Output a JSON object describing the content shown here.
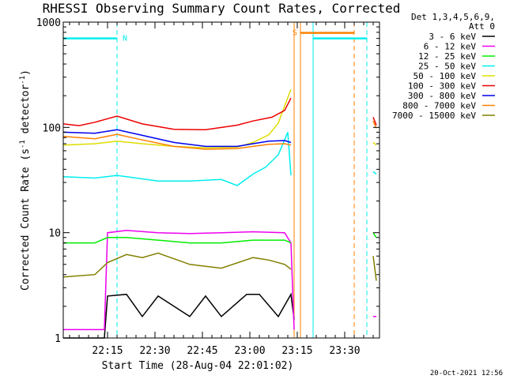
{
  "chart_data": {
    "type": "line",
    "title": "RHESSI Observing Summary Count Rates, Corrected",
    "xlabel": "Start Time (28-Aug-04 22:01:02)",
    "ylabel": "Corrected Count Rate (s",
    "ylabel_sup": "-1",
    "ylabel_tail": " detector",
    "ylabel_close": ")",
    "y_scale": "log",
    "ylim": [
      1,
      1000
    ],
    "xlim_minutes": [
      0,
      100
    ],
    "x_ticks": [
      {
        "minute": 14,
        "label": "22:15"
      },
      {
        "minute": 29,
        "label": "22:30"
      },
      {
        "minute": 44,
        "label": "22:45"
      },
      {
        "minute": 59,
        "label": "23:00"
      },
      {
        "minute": 74,
        "label": "23:15"
      },
      {
        "minute": 89,
        "label": "23:30"
      }
    ],
    "y_ticks": [
      {
        "value": 1,
        "label": "1"
      },
      {
        "value": 10,
        "label": "10"
      },
      {
        "value": 100,
        "label": "100"
      },
      {
        "value": 1000,
        "label": "1000"
      }
    ],
    "legend_header": [
      "Det 1,3,4,5,6,9,",
      "Att 0"
    ],
    "legend_position": "right",
    "series": [
      {
        "name": "3 - 6 keV",
        "color": "#000000",
        "x": [
          0,
          13,
          14,
          20,
          25,
          30,
          40,
          45,
          50,
          58,
          62,
          68,
          72,
          73
        ],
        "values": [
          1.0,
          1.0,
          2.5,
          2.6,
          1.6,
          2.5,
          1.6,
          2.5,
          1.6,
          2.6,
          2.6,
          1.6,
          2.6,
          1.5
        ]
      },
      {
        "name": "6 - 12 keV",
        "color": "#ee00ee",
        "x": [
          0,
          13,
          14,
          20,
          30,
          40,
          50,
          60,
          70,
          72,
          73
        ],
        "values": [
          1.2,
          1.2,
          10,
          10.5,
          10,
          9.8,
          10,
          10.2,
          10,
          8,
          1.2
        ]
      },
      {
        "name": "12 - 25 keV",
        "color": "#00ee00",
        "x": [
          0,
          10,
          14,
          20,
          30,
          40,
          50,
          60,
          70,
          72
        ],
        "values": [
          8,
          8,
          9,
          9,
          8.5,
          8,
          8,
          8.5,
          8.5,
          8
        ]
      },
      {
        "name": "25 - 50 keV",
        "color": "#00eeee",
        "x": [
          0,
          10,
          17,
          30,
          40,
          50,
          55,
          60,
          64,
          68,
          71,
          72
        ],
        "values": [
          34,
          33,
          35,
          31,
          31,
          32,
          28,
          36,
          42,
          55,
          90,
          35
        ]
      },
      {
        "name": "50 - 100 keV",
        "color": "#dddd00",
        "x": [
          0,
          10,
          17,
          25,
          35,
          45,
          55,
          60,
          65,
          68,
          70,
          72
        ],
        "values": [
          68,
          70,
          74,
          70,
          66,
          64,
          65,
          72,
          85,
          110,
          160,
          230
        ]
      },
      {
        "name": "100 - 300 keV",
        "color": "#ee0000",
        "x": [
          0,
          5,
          10,
          17,
          25,
          35,
          45,
          55,
          60,
          66,
          70,
          72
        ],
        "values": [
          108,
          104,
          112,
          128,
          108,
          96,
          95,
          105,
          115,
          125,
          145,
          190
        ]
      },
      {
        "name": "300 - 800 keV",
        "color": "#0000ee",
        "x": [
          0,
          10,
          17,
          25,
          35,
          45,
          55,
          60,
          65,
          70,
          72
        ],
        "values": [
          90,
          88,
          95,
          84,
          72,
          66,
          66,
          70,
          74,
          75,
          72
        ]
      },
      {
        "name": "800 - 7000 keV",
        "color": "#ff8000",
        "x": [
          0,
          10,
          17,
          25,
          35,
          45,
          55,
          60,
          65,
          70,
          72
        ],
        "values": [
          82,
          78,
          86,
          76,
          66,
          62,
          63,
          66,
          69,
          70,
          68
        ]
      },
      {
        "name": "7000 - 15000 keV",
        "color": "#808000",
        "x": [
          0,
          10,
          14,
          20,
          25,
          30,
          40,
          50,
          60,
          65,
          70,
          72
        ],
        "values": [
          3.8,
          4,
          5.2,
          6.2,
          5.8,
          6.4,
          5,
          4.6,
          5.8,
          5.5,
          5,
          4.5
        ]
      }
    ],
    "post_gap_series": [
      {
        "color": "#ee0000",
        "x": [
          98,
          99
        ],
        "values": [
          125,
          105
        ]
      },
      {
        "color": "#ff8000",
        "x": [
          98,
          99
        ],
        "values": [
          115,
          98
        ]
      },
      {
        "color": "#dddd00",
        "x": [
          98,
          99
        ],
        "values": [
          72,
          68
        ]
      },
      {
        "color": "#00eeee",
        "x": [
          98,
          99
        ],
        "values": [
          38,
          36
        ]
      },
      {
        "color": "#00ee00",
        "x": [
          98,
          99
        ],
        "values": [
          10,
          9
        ]
      },
      {
        "color": "#808000",
        "x": [
          98,
          99
        ],
        "values": [
          6,
          3.5
        ]
      },
      {
        "color": "#ee00ee",
        "x": [
          98,
          99
        ],
        "values": [
          1.6,
          1.6
        ]
      }
    ],
    "flags": [
      {
        "label": "N",
        "color": "#00eeee",
        "x_start": 0,
        "x_end": 17,
        "value": 700
      },
      {
        "label": "S",
        "color": "#ff8000",
        "x_start": 75,
        "x_end": 92,
        "value": 790
      },
      {
        "label": "",
        "color": "#00eeee",
        "x_start": 79,
        "x_end": 96,
        "value": 700
      }
    ],
    "markers": [
      {
        "x": 17,
        "color": "#00eeee",
        "style": "dashed"
      },
      {
        "x": 73,
        "color": "#ff8000",
        "style": "solid"
      },
      {
        "x": 75,
        "color": "#ff8000",
        "style": "solid"
      },
      {
        "x": 79,
        "color": "#00eeee",
        "style": "solid"
      },
      {
        "x": 92,
        "color": "#ff8000",
        "style": "dashed"
      },
      {
        "x": 96,
        "color": "#00eeee",
        "style": "dashed"
      }
    ],
    "footer": "20-Oct-2021 12:56"
  }
}
